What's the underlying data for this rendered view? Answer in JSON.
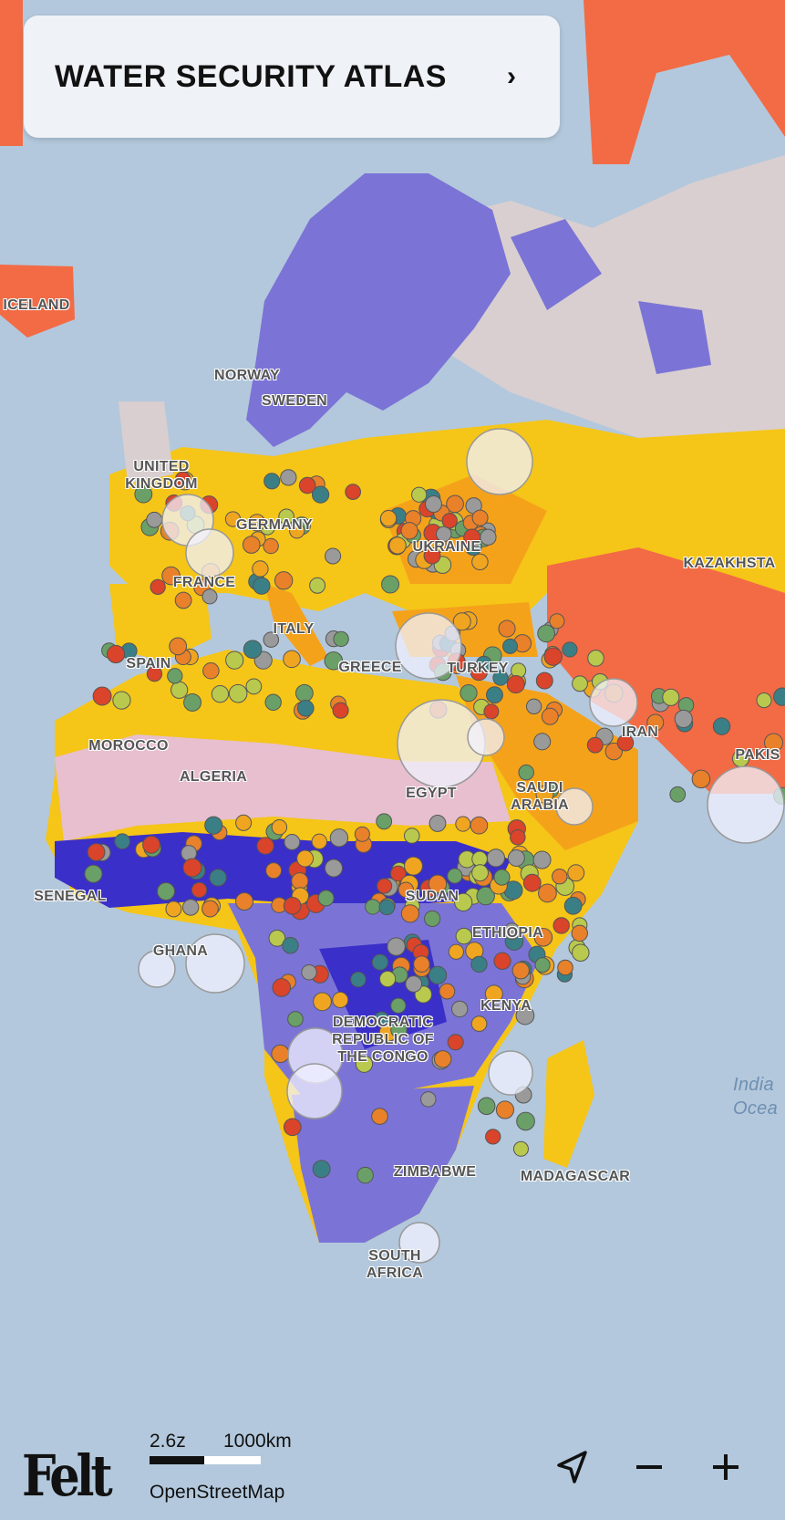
{
  "header": {
    "title": "WATER SECURITY ATLAS",
    "expand_icon": "chevron-right-icon"
  },
  "map": {
    "labels": [
      "ICELAND",
      "NORWAY",
      "SWEDEN",
      "UNITED KINGDOM",
      "GERMANY",
      "FRANCE",
      "UKRAINE",
      "KAZAKHSTA",
      "ITALY",
      "SPAIN",
      "GREECE",
      "TURKEY",
      "IRAN",
      "PAKIS",
      "MOROCCO",
      "ALGERIA",
      "EGYPT",
      "SAUDI ARABIA",
      "SENEGAL",
      "SUDAN",
      "ETHIOPIA",
      "GHANA",
      "KENYA",
      "DEMOCRATIC REPUBLIC OF THE CONGO",
      "ZIMBABWE",
      "MADAGASCAR",
      "SOUTH AFRICA",
      "India Ocea"
    ],
    "colors": {
      "sea": "#b3c8dc",
      "low": "#7b74d6",
      "very_low": "#3b2fc9",
      "neutral": "#d9cfd0",
      "medium": "#f5c518",
      "high": "#f5a21b",
      "very_high": "#f26b45",
      "arid": "#e7bfcf"
    },
    "marker_colors": [
      "#d9442b",
      "#e8812a",
      "#9a9a9a",
      "#3b7f86",
      "#6aa067",
      "#b9c94e",
      "#f0a521"
    ]
  },
  "footer": {
    "logo": "Felt",
    "zoom_level": "2.6z",
    "scale_label": "1000km",
    "attribution": "OpenStreetMap",
    "locate_icon": "navigation-arrow-icon",
    "zoom_out_icon": "minus-icon",
    "zoom_in_icon": "plus-icon"
  }
}
